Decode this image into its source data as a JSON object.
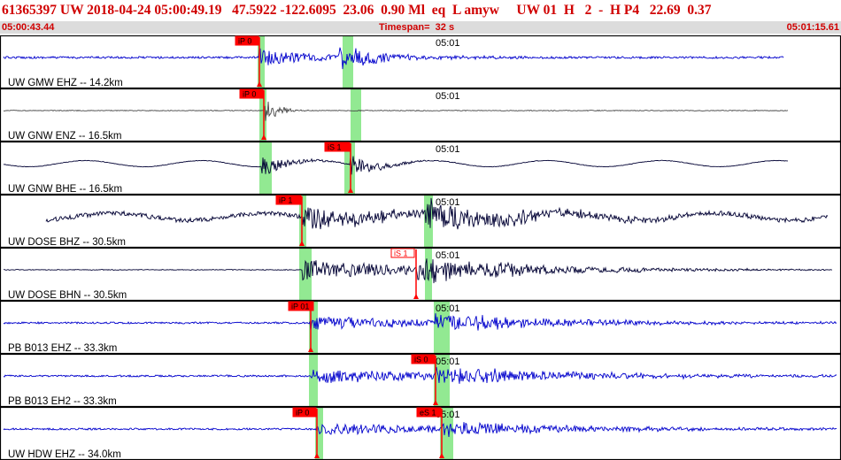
{
  "header": {
    "event_line": "61365397 UW 2018-04-24 05:00:49.19   47.5922 -122.6095  23.06  0.90 Ml  eq  L amyw     UW 01  H   2  -  H P4   22.69  0.37",
    "start_time": "05:00:43.44",
    "timespan": "Timespan=  32 s",
    "end_time": "05:01:15.61"
  },
  "colors": {
    "header_text": "#d00000",
    "time_bar": "#dcdcdc",
    "pick": "#ff0000",
    "window": "#7fe57f",
    "trace_blue": "#0000cc",
    "trace_black": "#000033"
  },
  "minute_label": "05:01",
  "panels": [
    {
      "label": "UW GMW EHZ -- 14.2km",
      "trace_color": "blue",
      "picks": [
        {
          "text": "iP 0",
          "style": "solid"
        }
      ]
    },
    {
      "label": "UW GNW ENZ -- 16.5km",
      "trace_color": "gray",
      "picks": [
        {
          "text": "iP 0",
          "style": "solid"
        }
      ]
    },
    {
      "label": "UW GNW BHE -- 16.5km",
      "trace_color": "black",
      "picks": [
        {
          "text": "iS 1",
          "style": "solid"
        }
      ]
    },
    {
      "label": "UW DOSE BHZ -- 30.5km",
      "trace_color": "black",
      "picks": [
        {
          "text": "iP 1",
          "style": "solid"
        }
      ]
    },
    {
      "label": "UW DOSE BHN -- 30.5km",
      "trace_color": "black",
      "picks": [
        {
          "text": "iS 1",
          "style": "outline"
        }
      ]
    },
    {
      "label": "PB B013 EHZ -- 33.3km",
      "trace_color": "blue",
      "picks": [
        {
          "text": "iP 01",
          "style": "solid"
        }
      ]
    },
    {
      "label": "PB B013 EH2 -- 33.3km",
      "trace_color": "blue",
      "picks": [
        {
          "text": "iS 0",
          "style": "solid"
        }
      ]
    },
    {
      "label": "UW HDW EHZ -- 34.0km",
      "trace_color": "blue",
      "picks": [
        {
          "text": "iP 0",
          "style": "solid"
        },
        {
          "text": "eS 1",
          "style": "solid"
        }
      ]
    }
  ]
}
